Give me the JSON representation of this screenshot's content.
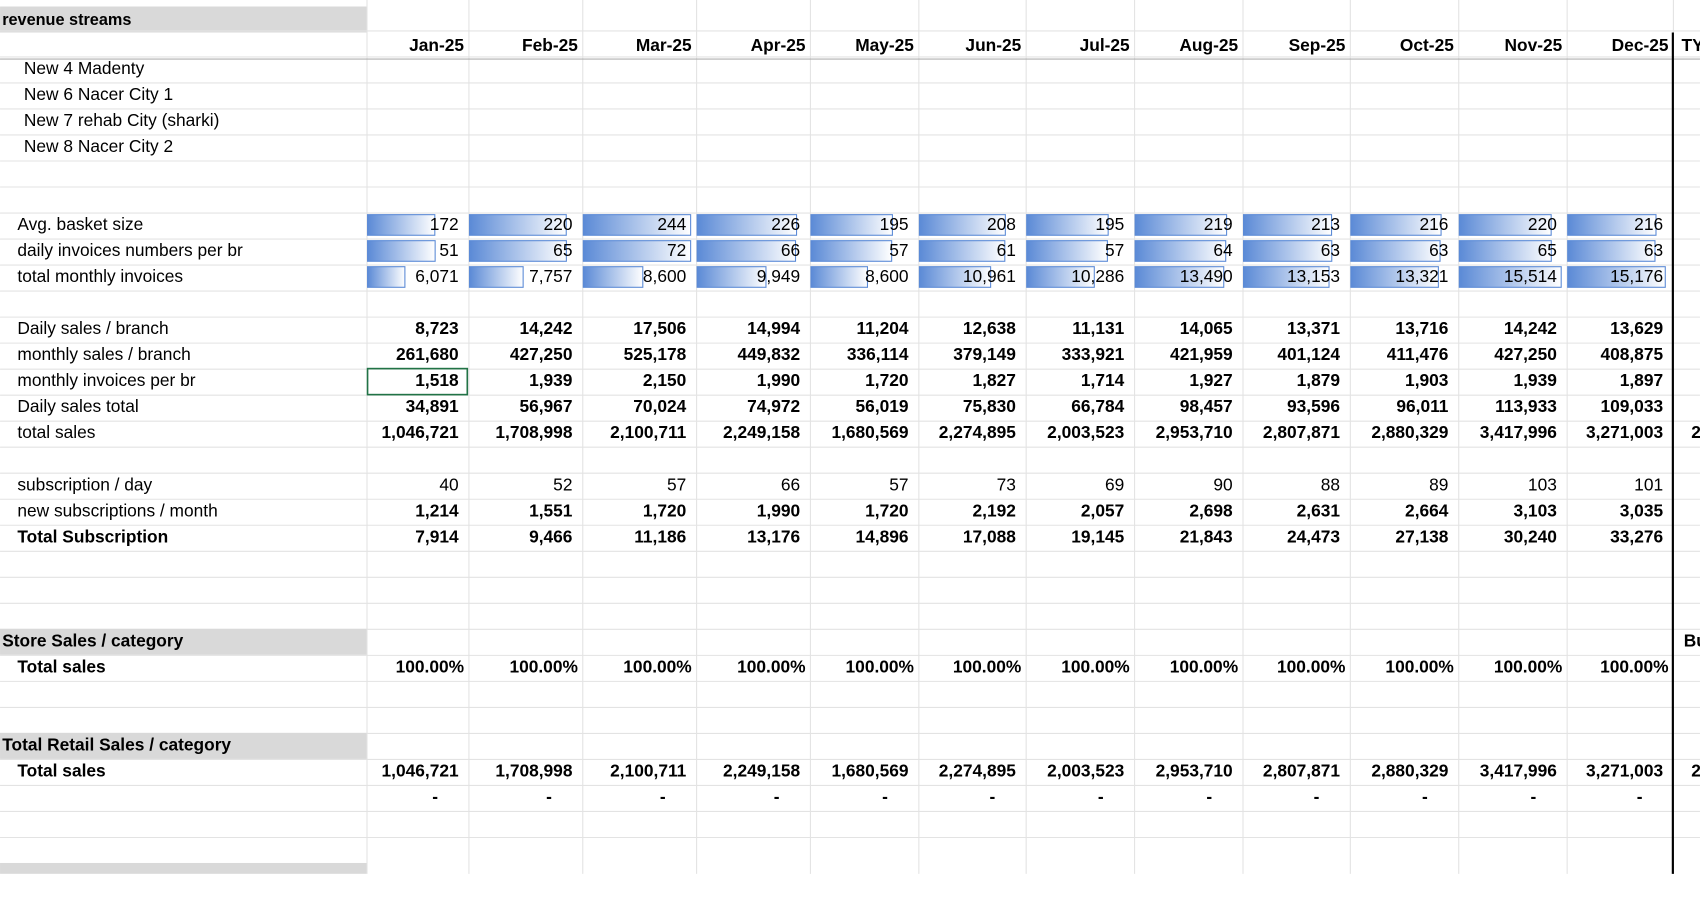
{
  "header": {
    "title": "revenue streams",
    "months": [
      "Jan-25",
      "Feb-25",
      "Mar-25",
      "Apr-25",
      "May-25",
      "Jun-25",
      "Jul-25",
      "Aug-25",
      "Sep-25",
      "Oct-25",
      "Nov-25",
      "Dec-25"
    ],
    "next_column": "TY"
  },
  "branches": [
    {
      "label": "New 4 Madenty",
      "label_color": "#4472c4"
    },
    {
      "label": "New 6 Nacer City 1",
      "label_color": "#4472c4"
    },
    {
      "label": "New 7 rehab City (sharki)",
      "label_color": "#4472c4"
    },
    {
      "label": "New 8 Nacer City 2",
      "label_color": "#4472c4"
    }
  ],
  "rows": [
    {
      "label": "Avg. basket size",
      "label_color": "#4472c4",
      "databar": true,
      "values": [
        "172",
        "220",
        "244",
        "226",
        "195",
        "208",
        "195",
        "219",
        "213",
        "216",
        "220",
        "216"
      ]
    },
    {
      "label": "daily invoices numbers per br",
      "databar": true,
      "values": [
        "51",
        "65",
        "72",
        "66",
        "57",
        "61",
        "57",
        "64",
        "63",
        "63",
        "65",
        "63"
      ]
    },
    {
      "label": "total monthly invoices",
      "databar": true,
      "values": [
        "6,071",
        "7,757",
        "8,600",
        "9,949",
        "8,600",
        "10,961",
        "10,286",
        "13,490",
        "13,153",
        "13,321",
        "15,514",
        "15,176"
      ]
    },
    {
      "label": "Daily sales / branch",
      "label_color": "#4472c4",
      "bold": true,
      "values": [
        "8,723",
        "14,242",
        "17,506",
        "14,994",
        "11,204",
        "12,638",
        "11,131",
        "14,065",
        "13,371",
        "13,716",
        "14,242",
        "13,629"
      ]
    },
    {
      "label": "monthly sales / branch",
      "label_color": "#4472c4",
      "bold": true,
      "values": [
        "261,680",
        "427,250",
        "525,178",
        "449,832",
        "336,114",
        "379,149",
        "333,921",
        "421,959",
        "401,124",
        "411,476",
        "427,250",
        "408,875"
      ]
    },
    {
      "label": "monthly invoices per br",
      "bold": true,
      "values": [
        "1,518",
        "1,939",
        "2,150",
        "1,990",
        "1,720",
        "1,827",
        "1,714",
        "1,927",
        "1,879",
        "1,903",
        "1,939",
        "1,897"
      ]
    },
    {
      "label": "Daily sales total",
      "bold": true,
      "values": [
        "34,891",
        "56,967",
        "70,024",
        "74,972",
        "56,019",
        "75,830",
        "66,784",
        "98,457",
        "93,596",
        "96,011",
        "113,933",
        "109,033"
      ]
    },
    {
      "label": "total sales",
      "bold": true,
      "values": [
        "1,046,721",
        "1,708,998",
        "2,100,711",
        "2,249,158",
        "1,680,569",
        "2,274,895",
        "2,003,523",
        "2,953,710",
        "2,807,871",
        "2,880,329",
        "3,417,996",
        "3,271,003"
      ],
      "next_column": "2"
    },
    {
      "label": "subscription / day",
      "values": [
        "40",
        "52",
        "57",
        "66",
        "57",
        "73",
        "69",
        "90",
        "88",
        "89",
        "103",
        "101"
      ]
    },
    {
      "label": "new subscriptions / month",
      "bold": true,
      "values": [
        "1,214",
        "1,551",
        "1,720",
        "1,990",
        "1,720",
        "2,192",
        "2,057",
        "2,698",
        "2,631",
        "2,664",
        "3,103",
        "3,035"
      ]
    },
    {
      "label": "Total Subscription",
      "bold": true,
      "label_bold": true,
      "values": [
        "7,914",
        "9,466",
        "11,186",
        "13,176",
        "14,896",
        "17,088",
        "19,145",
        "21,843",
        "24,473",
        "27,138",
        "30,240",
        "33,276"
      ]
    }
  ],
  "store": {
    "title": "Store Sales / category",
    "next_column": "Bu",
    "label": "Total sales",
    "values": [
      "100.00%",
      "100.00%",
      "100.00%",
      "100.00%",
      "100.00%",
      "100.00%",
      "100.00%",
      "100.00%",
      "100.00%",
      "100.00%",
      "100.00%",
      "100.00%"
    ]
  },
  "retail": {
    "title": "Total Retail Sales / category",
    "label": "Total sales",
    "values": [
      "1,046,721",
      "1,708,998",
      "2,100,711",
      "2,249,158",
      "1,680,569",
      "2,274,895",
      "2,003,523",
      "2,953,710",
      "2,807,871",
      "2,880,329",
      "3,417,996",
      "3,271,003"
    ],
    "next_column": "2",
    "dashes": [
      "-",
      "-",
      "-",
      "-",
      "-",
      "-",
      "-",
      "-",
      "-",
      "-",
      "-",
      "-"
    ]
  }
}
